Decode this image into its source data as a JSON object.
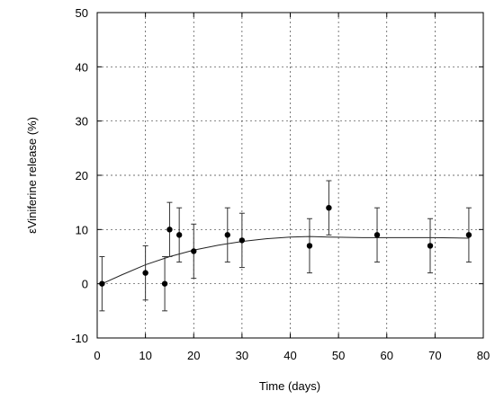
{
  "chart_data": {
    "type": "scatter",
    "title": "",
    "xlabel": "Time (days)",
    "ylabel": "εViniferine release (%)",
    "xlim": [
      0,
      80
    ],
    "ylim": [
      -10,
      50
    ],
    "xticks": [
      0,
      10,
      20,
      30,
      40,
      50,
      60,
      70,
      80
    ],
    "yticks": [
      -10,
      0,
      10,
      20,
      30,
      40,
      50
    ],
    "grid": true,
    "series": [
      {
        "points": [
          {
            "x": 1,
            "y": 0,
            "err": 5
          },
          {
            "x": 10,
            "y": 2,
            "err": 5
          },
          {
            "x": 14,
            "y": 0,
            "err": 5
          },
          {
            "x": 15,
            "y": 10,
            "err": 5
          },
          {
            "x": 17,
            "y": 9,
            "err": 5
          },
          {
            "x": 20,
            "y": 6,
            "err": 5
          },
          {
            "x": 27,
            "y": 9,
            "err": 5
          },
          {
            "x": 30,
            "y": 8,
            "err": 5
          },
          {
            "x": 44,
            "y": 7,
            "err": 5
          },
          {
            "x": 48,
            "y": 14,
            "err": 5
          },
          {
            "x": 58,
            "y": 9,
            "err": 5
          },
          {
            "x": 69,
            "y": 7,
            "err": 5
          },
          {
            "x": 77,
            "y": 9,
            "err": 5
          }
        ]
      }
    ],
    "fit_curve": {
      "x": [
        1,
        5,
        10,
        15,
        20,
        25,
        30,
        35,
        40,
        44,
        48,
        55,
        60,
        70,
        77
      ],
      "y": [
        0,
        1.6,
        3.5,
        5.0,
        6.2,
        7.1,
        7.8,
        8.3,
        8.6,
        8.7,
        8.6,
        8.5,
        8.5,
        8.5,
        8.4
      ]
    }
  }
}
